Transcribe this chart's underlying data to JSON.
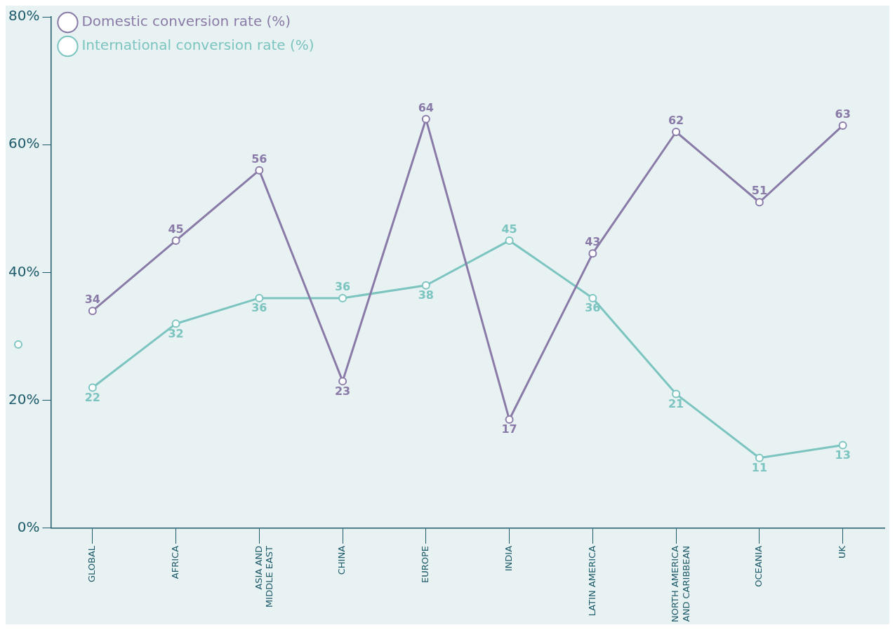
{
  "chart_data": {
    "type": "line",
    "categories": [
      "GLOBAL",
      "AFRICA",
      "ASIA AND MIDDLE EAST",
      "CHINA",
      "EUROPE",
      "INDIA",
      "LATIN AMERICA",
      "NORTH AMERICA AND CARIBBEAN",
      "OCEANIA",
      "UK"
    ],
    "series": [
      {
        "name": "Domestic conversion rate (%)",
        "color": "#8a7aa8",
        "values": [
          34,
          45,
          56,
          23,
          64,
          17,
          43,
          62,
          51,
          63
        ]
      },
      {
        "name": "International conversion rate (%)",
        "color": "#7cc4c0",
        "values": [
          22,
          32,
          36,
          36,
          38,
          45,
          36,
          21,
          11,
          13
        ]
      }
    ],
    "ylim": [
      0,
      80
    ],
    "yticks": [
      {
        "value": 0,
        "label": "0%"
      },
      {
        "value": 20,
        "label": "20%"
      },
      {
        "value": 40,
        "label": "40%"
      },
      {
        "value": 60,
        "label": "60%"
      },
      {
        "value": 80,
        "label": "80%"
      }
    ],
    "data_labels": true,
    "legend": "top left",
    "marker": "circle",
    "line_style": "solid",
    "grid": false
  }
}
